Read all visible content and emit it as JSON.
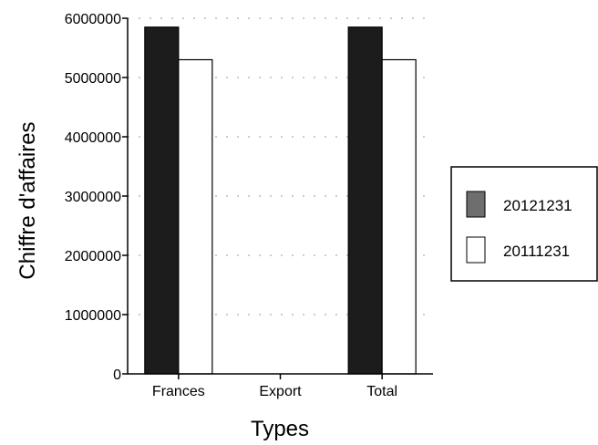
{
  "chart_data": {
    "type": "bar",
    "title": "",
    "xlabel": "Types",
    "ylabel": "Chiffre d'affaires",
    "categories": [
      "Frances",
      "Export",
      "Total"
    ],
    "series": [
      {
        "name": "20121231",
        "values": [
          5850000,
          0,
          5850000
        ],
        "color": "#1c1c1c"
      },
      {
        "name": "20111231",
        "values": [
          5300000,
          0,
          5300000
        ],
        "color": "#ffffff"
      }
    ],
    "ylim": [
      0,
      6000000
    ],
    "yticks": [
      0,
      1000000,
      2000000,
      3000000,
      4000000,
      5000000,
      6000000
    ],
    "ytick_labels": [
      "0",
      "1000000",
      "2000000",
      "3000000",
      "4000000",
      "5000000",
      "6000000"
    ],
    "grid": true,
    "legend_position": "right"
  }
}
